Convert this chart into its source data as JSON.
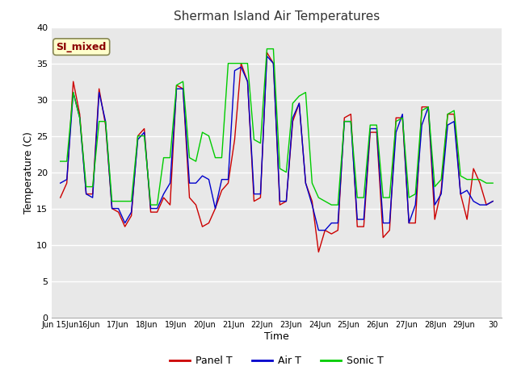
{
  "title": "Sherman Island Air Temperatures",
  "xlabel": "Time",
  "ylabel": "Temperature (C)",
  "ylim": [
    0,
    40
  ],
  "background_color": "#e8e8e8",
  "figure_color": "#ffffff",
  "annotation_text": "SI_mixed",
  "annotation_color": "#8b0000",
  "annotation_bg": "#ffffcc",
  "xtick_labels": [
    "Jun 15Jun",
    "16Jun",
    "17Jun",
    "18Jun",
    "19Jun",
    "20Jun",
    "21Jun",
    "22Jun",
    "23Jun",
    "24Jun",
    "25Jun",
    "26Jun",
    "27Jun",
    "28Jun",
    "29Jun",
    "30"
  ],
  "ytick_vals": [
    0,
    5,
    10,
    15,
    20,
    25,
    30,
    35,
    40
  ],
  "panel_t_color": "#cc0000",
  "air_t_color": "#0000cc",
  "sonic_t_color": "#00cc00",
  "panel_t": [
    16.5,
    18.5,
    32.5,
    28.0,
    17.0,
    17.0,
    31.5,
    26.5,
    15.0,
    14.5,
    12.5,
    14.0,
    25.0,
    26.0,
    14.5,
    14.5,
    16.5,
    15.5,
    32.0,
    31.5,
    16.5,
    15.5,
    12.5,
    13.0,
    15.0,
    17.5,
    18.5,
    24.5,
    35.0,
    32.5,
    16.0,
    16.5,
    36.5,
    35.0,
    15.5,
    16.0,
    27.0,
    29.5,
    18.5,
    16.0,
    9.0,
    12.0,
    11.5,
    12.0,
    27.5,
    28.0,
    12.5,
    12.5,
    25.5,
    25.5,
    11.0,
    12.0,
    27.5,
    27.5,
    13.0,
    13.0,
    29.0,
    29.0,
    13.5,
    17.5,
    28.0,
    28.0,
    17.0,
    13.5,
    20.5,
    18.5,
    15.5,
    16.0
  ],
  "air_t": [
    18.5,
    19.0,
    31.0,
    27.5,
    17.0,
    16.5,
    31.0,
    27.0,
    15.0,
    15.0,
    13.0,
    14.5,
    24.5,
    25.5,
    15.0,
    15.0,
    17.0,
    18.5,
    31.5,
    31.5,
    18.5,
    18.5,
    19.5,
    19.0,
    15.0,
    19.0,
    19.0,
    34.0,
    34.5,
    32.5,
    17.0,
    17.0,
    36.0,
    35.0,
    16.0,
    16.0,
    27.5,
    29.5,
    18.5,
    15.5,
    12.0,
    12.0,
    13.0,
    13.0,
    27.0,
    27.0,
    13.5,
    13.5,
    26.0,
    26.0,
    13.0,
    13.0,
    25.5,
    28.0,
    13.0,
    15.5,
    26.5,
    29.0,
    15.5,
    17.0,
    26.5,
    27.0,
    17.0,
    17.5,
    16.0,
    15.5,
    15.5,
    16.0
  ],
  "sonic_t": [
    21.5,
    21.5,
    31.0,
    27.5,
    18.0,
    18.0,
    27.0,
    27.0,
    16.0,
    16.0,
    16.0,
    16.0,
    25.0,
    25.0,
    15.5,
    15.5,
    22.0,
    22.0,
    32.0,
    32.5,
    22.0,
    21.5,
    25.5,
    25.0,
    22.0,
    22.0,
    35.0,
    35.0,
    35.0,
    35.0,
    24.5,
    24.0,
    37.0,
    37.0,
    20.5,
    20.0,
    29.5,
    30.5,
    31.0,
    18.5,
    16.5,
    16.0,
    15.5,
    15.5,
    27.0,
    27.0,
    16.5,
    16.5,
    26.5,
    26.5,
    16.5,
    16.5,
    27.0,
    27.5,
    16.5,
    17.0,
    28.5,
    29.0,
    18.0,
    19.0,
    28.0,
    28.5,
    19.5,
    19.0,
    19.0,
    19.0,
    18.5,
    18.5
  ]
}
